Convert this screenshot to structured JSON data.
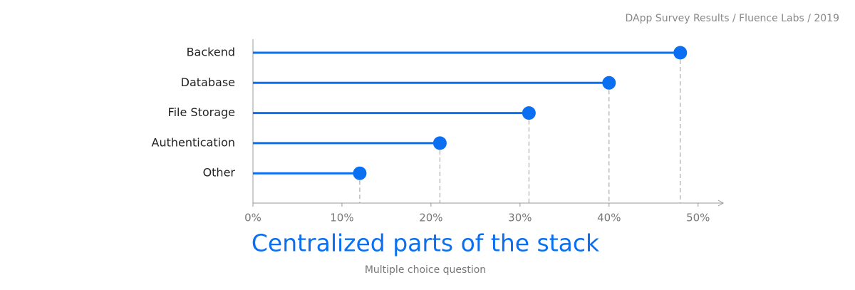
{
  "chart_data": {
    "type": "lollipop",
    "orientation": "horizontal",
    "title": "Centralized parts of the stack",
    "subtitle": "Multiple choice question",
    "source": "DApp Survey Results / Fluence Labs / 2019",
    "categories": [
      "Backend",
      "Database",
      "File Storage",
      "Authentication",
      "Other"
    ],
    "values": [
      48,
      40,
      31,
      21,
      12
    ],
    "color": "#0a6ff0",
    "xlim": [
      0,
      52.5
    ],
    "xticks": [
      {
        "value": 0,
        "label": "0%"
      },
      {
        "value": 10,
        "label": "10%"
      },
      {
        "value": 20,
        "label": "20%"
      },
      {
        "value": 30,
        "label": "30%"
      },
      {
        "value": 40,
        "label": "40%"
      },
      {
        "value": 50,
        "label": "50%"
      }
    ]
  }
}
